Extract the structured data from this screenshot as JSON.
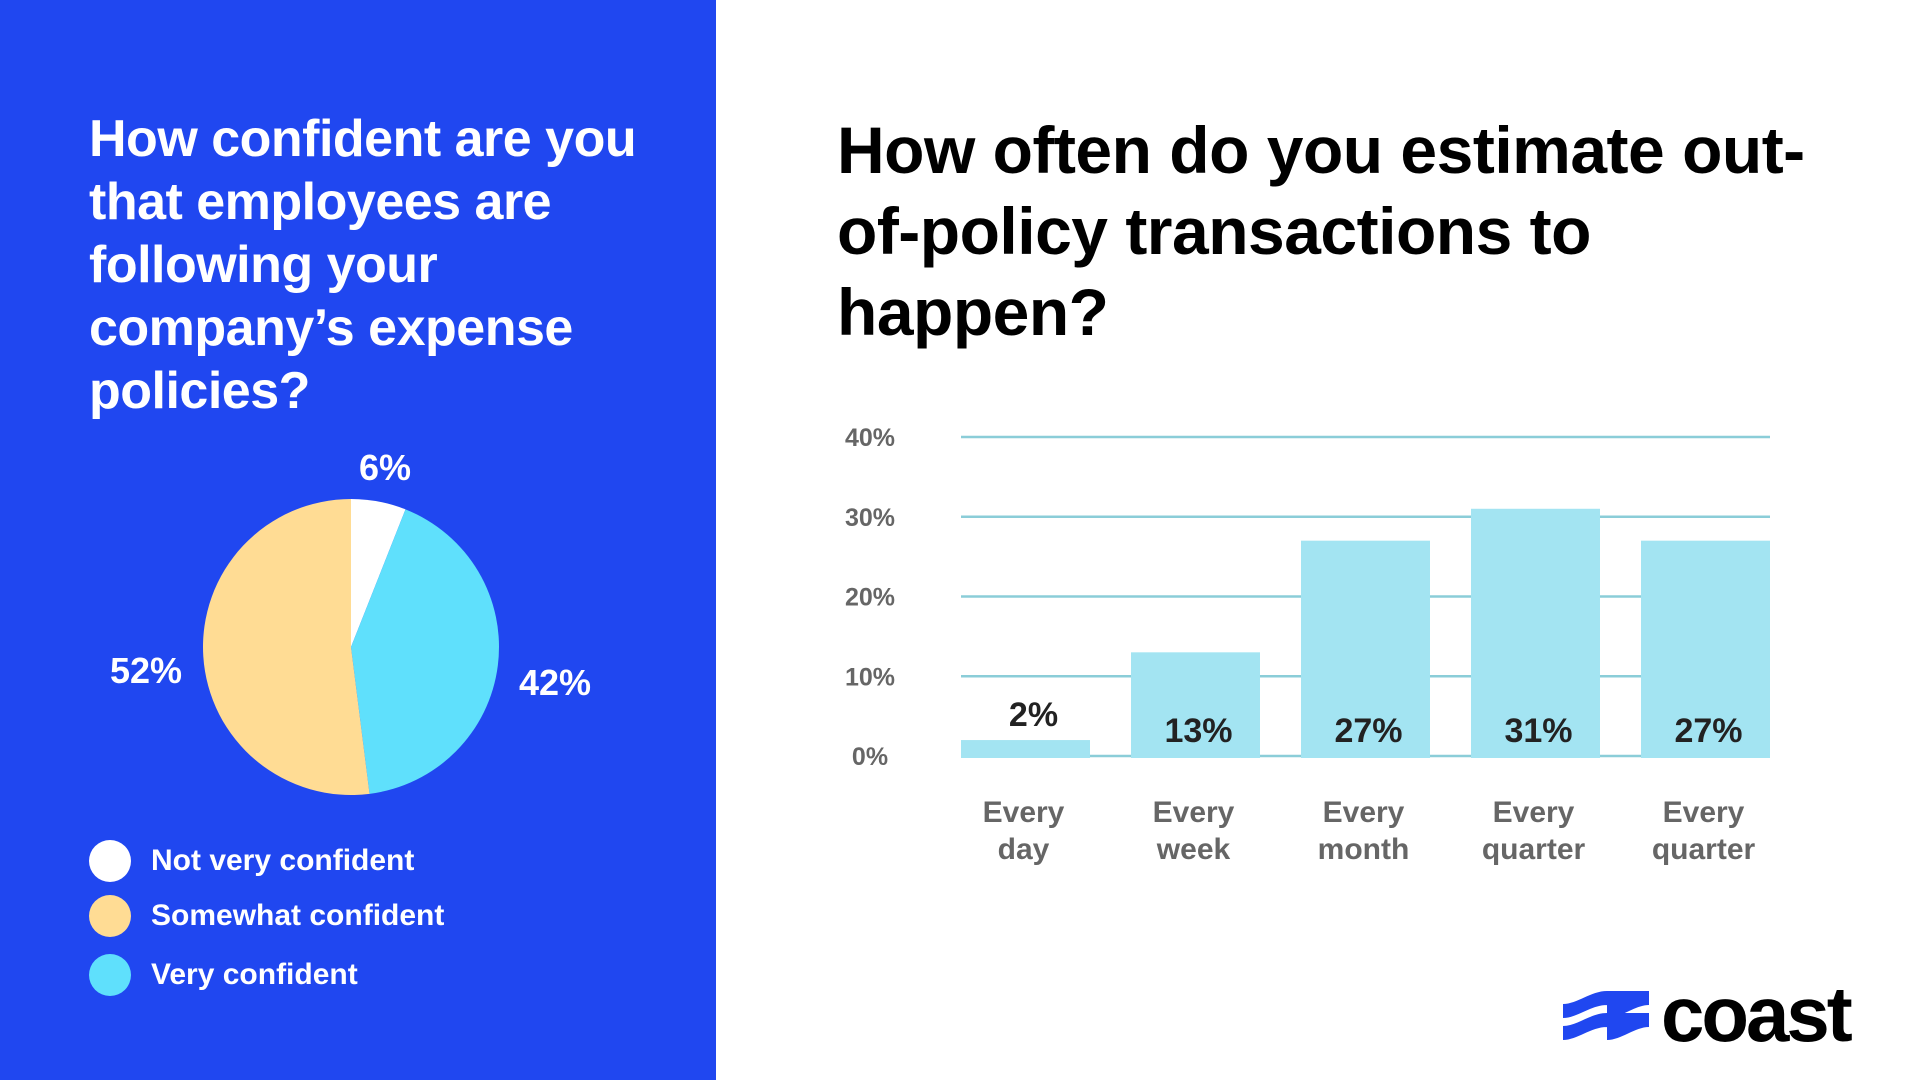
{
  "left_panel": {
    "title": "How confident are you that employees are following your company’s expense policies?",
    "background": "#2047F0"
  },
  "chart_data": [
    {
      "type": "pie",
      "title": "How confident are you that employees are following your company’s expense policies?",
      "slices": [
        {
          "label": "Not very confident",
          "value": 6,
          "display": "6%",
          "color": "#FFFFFF"
        },
        {
          "label": "Very confident",
          "value": 42,
          "display": "42%",
          "color": "#5FE0FC"
        },
        {
          "label": "Somewhat confident",
          "value": 52,
          "display": "52%",
          "color": "#FFDC94"
        }
      ],
      "legend": [
        {
          "label": "Not very confident",
          "color": "#FFFFFF"
        },
        {
          "label": "Somewhat confident",
          "color": "#FFDC94"
        },
        {
          "label": "Very confident",
          "color": "#5FE0FC"
        }
      ],
      "legend_position": "bottom-left"
    },
    {
      "type": "bar",
      "title": "How often do you estimate out-of-policy transactions to happen?",
      "categories": [
        [
          "Every",
          "day"
        ],
        [
          "Every",
          "week"
        ],
        [
          "Every",
          "month"
        ],
        [
          "Every",
          "quarter"
        ],
        [
          "Every",
          "quarter"
        ]
      ],
      "values": [
        2,
        13,
        27,
        31,
        27
      ],
      "data_labels": [
        "2%",
        "13%",
        "27%",
        "31%",
        "27%"
      ],
      "ylim": [
        0,
        40
      ],
      "yticks": [
        0,
        10,
        20,
        30,
        40
      ],
      "ytick_labels": [
        "0%",
        "10%",
        "20%",
        "30%",
        "40%"
      ],
      "grid": true,
      "bar_color": "#A3E4F2",
      "grid_color": "#8BCDD8",
      "xlabel": "",
      "ylabel": ""
    }
  ],
  "brand": {
    "name": "coast",
    "color": "#2047F0"
  }
}
